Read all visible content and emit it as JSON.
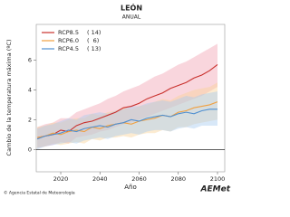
{
  "chart_data": {
    "type": "line",
    "title": "LEÓN",
    "subtitle": "ANUAL",
    "xlabel": "Año",
    "ylabel": "Cambio de la temperatura máxima (ºC)",
    "x": [
      2008,
      2012,
      2016,
      2020,
      2024,
      2028,
      2032,
      2036,
      2040,
      2044,
      2048,
      2052,
      2056,
      2060,
      2064,
      2068,
      2072,
      2076,
      2080,
      2084,
      2088,
      2092,
      2096,
      2100
    ],
    "xlim": [
      2007.5,
      2103.7
    ],
    "xticks": [
      2020,
      2040,
      2060,
      2080,
      2100
    ],
    "ylim": [
      -1.5,
      8.4
    ],
    "yticks": [
      0,
      2,
      4,
      6
    ],
    "legend": "top-left",
    "series": [
      {
        "name": "RCP8.5",
        "count_label": "( 14)",
        "color": "#c9302c",
        "band_color": "#f2a4b4",
        "values": [
          0.8,
          0.9,
          1.0,
          1.3,
          1.2,
          1.6,
          1.8,
          1.9,
          2.1,
          2.3,
          2.5,
          2.8,
          2.9,
          3.1,
          3.4,
          3.6,
          3.8,
          4.1,
          4.3,
          4.5,
          4.8,
          5.0,
          5.3,
          5.7
        ],
        "low": [
          0.1,
          0.2,
          0.3,
          0.5,
          0.4,
          0.8,
          0.9,
          1.0,
          1.2,
          1.3,
          1.5,
          1.7,
          1.8,
          2.0,
          2.2,
          2.4,
          2.6,
          2.8,
          3.0,
          3.2,
          3.4,
          3.6,
          3.9,
          4.2
        ],
        "high": [
          1.5,
          1.7,
          1.8,
          2.1,
          2.1,
          2.5,
          2.7,
          2.9,
          3.1,
          3.4,
          3.6,
          3.9,
          4.1,
          4.3,
          4.6,
          4.9,
          5.1,
          5.4,
          5.7,
          5.9,
          6.2,
          6.5,
          6.8,
          7.1
        ]
      },
      {
        "name": "RCP6.0",
        "count_label": "(  6)",
        "color": "#f0a040",
        "band_color": "#f9d39a",
        "values": [
          0.8,
          0.9,
          1.1,
          1.0,
          1.2,
          1.3,
          1.2,
          1.5,
          1.4,
          1.6,
          1.7,
          1.8,
          1.7,
          1.9,
          2.0,
          2.1,
          2.3,
          2.2,
          2.5,
          2.6,
          2.8,
          2.9,
          3.0,
          3.2
        ],
        "low": [
          0.1,
          0.2,
          0.4,
          0.3,
          0.4,
          0.5,
          0.4,
          0.7,
          0.6,
          0.8,
          0.8,
          0.9,
          0.8,
          1.0,
          1.1,
          1.1,
          1.3,
          1.2,
          1.5,
          1.5,
          1.7,
          1.8,
          1.9,
          2.0
        ],
        "high": [
          1.5,
          1.6,
          1.8,
          1.8,
          2.0,
          2.1,
          2.1,
          2.4,
          2.3,
          2.5,
          2.6,
          2.8,
          2.7,
          2.9,
          3.0,
          3.2,
          3.4,
          3.3,
          3.6,
          3.8,
          4.0,
          4.1,
          4.2,
          4.5
        ]
      },
      {
        "name": "RCP4.5",
        "count_label": "( 13)",
        "color": "#4f8fd0",
        "band_color": "#a9cdef",
        "values": [
          0.7,
          0.9,
          1.0,
          1.1,
          1.3,
          1.2,
          1.4,
          1.5,
          1.6,
          1.5,
          1.7,
          1.8,
          2.0,
          1.9,
          2.1,
          2.2,
          2.3,
          2.2,
          2.4,
          2.5,
          2.4,
          2.6,
          2.7,
          2.7
        ],
        "low": [
          0.0,
          0.2,
          0.3,
          0.4,
          0.5,
          0.4,
          0.6,
          0.7,
          0.8,
          0.7,
          0.9,
          1.0,
          1.1,
          1.0,
          1.2,
          1.3,
          1.3,
          1.2,
          1.4,
          1.5,
          1.4,
          1.6,
          1.6,
          1.6
        ],
        "high": [
          1.4,
          1.6,
          1.7,
          1.9,
          2.1,
          2.0,
          2.3,
          2.4,
          2.5,
          2.4,
          2.6,
          2.7,
          2.9,
          2.9,
          3.1,
          3.2,
          3.3,
          3.2,
          3.4,
          3.6,
          3.5,
          3.7,
          3.8,
          3.9
        ]
      }
    ]
  },
  "footer": {
    "credit": "© Agencia Estatal de Meteorología",
    "logo": "AEMet"
  }
}
